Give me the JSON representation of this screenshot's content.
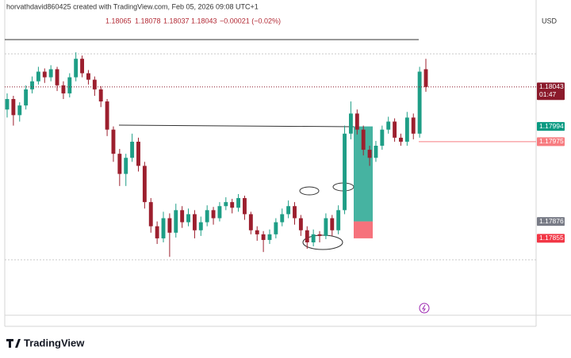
{
  "header": {
    "credit": "horvathdavid860425 created with TradingView.com, Feb 05, 2026 09:08 UTC+1",
    "ohlc": [
      "1.18065",
      "1.18078",
      "1.18037",
      "1.18043",
      "−0.00021 (−0.02%)"
    ],
    "currency": "USD",
    "logo": "TradingView"
  },
  "chart_data": {
    "type": "candlestick",
    "ylim": [
      1.1776,
      1.1815
    ],
    "up_color": "#1e9e86",
    "down_color": "#9c1f2e",
    "ohlc": [
      [
        1.18015,
        1.18035,
        1.18005,
        1.18028
      ],
      [
        1.18028,
        1.18032,
        1.17995,
        1.18008
      ],
      [
        1.18008,
        1.18024,
        1.18,
        1.1802
      ],
      [
        1.1802,
        1.18045,
        1.18015,
        1.1804
      ],
      [
        1.1804,
        1.18056,
        1.18035,
        1.1805
      ],
      [
        1.1805,
        1.18068,
        1.18046,
        1.18062
      ],
      [
        1.18062,
        1.18066,
        1.18048,
        1.18055
      ],
      [
        1.18055,
        1.1807,
        1.1805,
        1.18065
      ],
      [
        1.18065,
        1.18068,
        1.18038,
        1.18045
      ],
      [
        1.18045,
        1.1805,
        1.18028,
        1.18035
      ],
      [
        1.18035,
        1.1806,
        1.1803,
        1.18055
      ],
      [
        1.18055,
        1.18086,
        1.1805,
        1.18078
      ],
      [
        1.18078,
        1.18082,
        1.18055,
        1.1806
      ],
      [
        1.1806,
        1.18064,
        1.18046,
        1.18052
      ],
      [
        1.18052,
        1.18056,
        1.18032,
        1.1804
      ],
      [
        1.1804,
        1.18044,
        1.18018,
        1.18025
      ],
      [
        1.18025,
        1.18028,
        1.17982,
        1.1799
      ],
      [
        1.1799,
        1.17994,
        1.1795,
        1.1796
      ],
      [
        1.1796,
        1.17966,
        1.1792,
        1.17935
      ],
      [
        1.17935,
        1.1796,
        1.1792,
        1.17955
      ],
      [
        1.17955,
        1.17985,
        1.1795,
        1.17975
      ],
      [
        1.17975,
        1.1798,
        1.17938,
        1.17945
      ],
      [
        1.17945,
        1.1795,
        1.17892,
        1.179
      ],
      [
        1.179,
        1.17905,
        1.17862,
        1.1787
      ],
      [
        1.1787,
        1.17876,
        1.17848,
        1.17855
      ],
      [
        1.17855,
        1.17888,
        1.1785,
        1.1788
      ],
      [
        1.1788,
        1.17886,
        1.17832,
        1.17862
      ],
      [
        1.17862,
        1.17898,
        1.17856,
        1.1789
      ],
      [
        1.1789,
        1.17895,
        1.17868,
        1.17875
      ],
      [
        1.17875,
        1.17892,
        1.1787,
        1.17885
      ],
      [
        1.17885,
        1.1789,
        1.17855,
        1.17865
      ],
      [
        1.17865,
        1.17882,
        1.17858,
        1.17875
      ],
      [
        1.17875,
        1.17896,
        1.1787,
        1.1789
      ],
      [
        1.1789,
        1.17894,
        1.17872,
        1.1788
      ],
      [
        1.1788,
        1.179,
        1.17876,
        1.17895
      ],
      [
        1.17895,
        1.17906,
        1.1789,
        1.179
      ],
      [
        1.179,
        1.17904,
        1.17886,
        1.17893
      ],
      [
        1.17893,
        1.1791,
        1.17888,
        1.17905
      ],
      [
        1.17905,
        1.17908,
        1.17878,
        1.17885
      ],
      [
        1.17885,
        1.17888,
        1.1786,
        1.17865
      ],
      [
        1.17865,
        1.1787,
        1.17852,
        1.1786
      ],
      [
        1.1786,
        1.17864,
        1.17838,
        1.17853
      ],
      [
        1.17853,
        1.17866,
        1.17848,
        1.1786
      ],
      [
        1.1786,
        1.1788,
        1.17855,
        1.17875
      ],
      [
        1.17875,
        1.17892,
        1.1787,
        1.17885
      ],
      [
        1.17885,
        1.17902,
        1.1788,
        1.17895
      ],
      [
        1.17895,
        1.179,
        1.17872,
        1.1788
      ],
      [
        1.1788,
        1.17884,
        1.17858,
        1.17865
      ],
      [
        1.17865,
        1.1787,
        1.17842,
        1.1785
      ],
      [
        1.1785,
        1.17866,
        1.17845,
        1.1786
      ],
      [
        1.1786,
        1.17864,
        1.1785,
        1.17858
      ],
      [
        1.17858,
        1.17886,
        1.17854,
        1.1788
      ],
      [
        1.1788,
        1.17884,
        1.17858,
        1.17865
      ],
      [
        1.17865,
        1.17896,
        1.1786,
        1.1789
      ],
      [
        1.1789,
        1.17995,
        1.17885,
        1.17985
      ],
      [
        1.17985,
        1.18025,
        1.17978,
        1.1801
      ],
      [
        1.1801,
        1.18015,
        1.17984,
        1.1799
      ],
      [
        1.1799,
        1.17995,
        1.17958,
        1.17965
      ],
      [
        1.17965,
        1.1797,
        1.17945,
        1.17955
      ],
      [
        1.17955,
        1.17976,
        1.1795,
        1.1797
      ],
      [
        1.1797,
        1.17995,
        1.17965,
        1.1799
      ],
      [
        1.1799,
        1.18006,
        1.17985,
        1.18
      ],
      [
        1.18,
        1.18004,
        1.17975,
        1.1798
      ],
      [
        1.1798,
        1.17985,
        1.1797,
        1.17975
      ],
      [
        1.17975,
        1.18012,
        1.1797,
        1.18005
      ],
      [
        1.18005,
        1.1801,
        1.17978,
        1.17985
      ],
      [
        1.17985,
        1.18068,
        1.1798,
        1.18062
      ],
      [
        1.18065,
        1.18078,
        1.18037,
        1.18043
      ]
    ],
    "price_tags": [
      {
        "value": 1.18043,
        "color": "#8b1a2b",
        "countdown": "01:47",
        "line": "dotted"
      },
      {
        "value": 1.17994,
        "color": "#089981"
      },
      {
        "value": 1.17975,
        "color": "#f77c80",
        "line": "solid"
      },
      {
        "value": 1.17876,
        "color": "#787b86"
      },
      {
        "value": 1.17855,
        "color": "#f23645"
      }
    ]
  }
}
